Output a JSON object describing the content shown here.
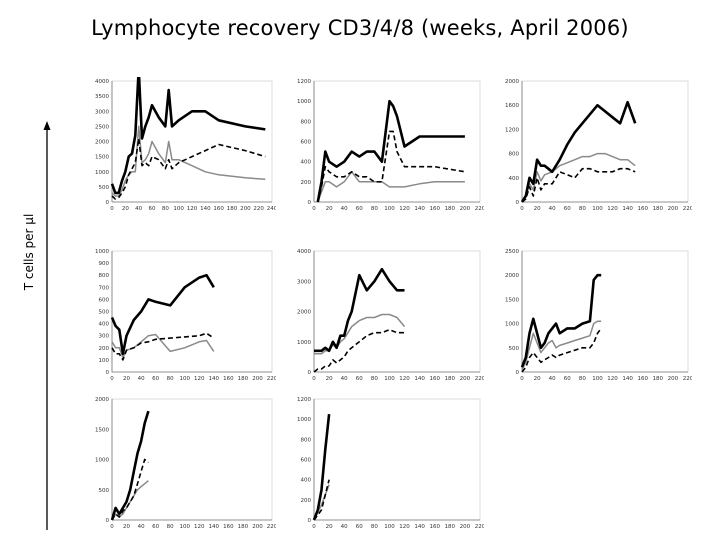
{
  "title": "Lymphocyte recovery CD3/4/8 (weeks, April 2006)",
  "ylabel": "T cells per μl",
  "chart_data": [
    {
      "type": "line",
      "ylim": [
        0,
        4000
      ],
      "yticks": [
        0,
        500,
        1000,
        1500,
        2000,
        2500,
        3000,
        3500,
        4000
      ],
      "xlim": [
        0,
        240
      ],
      "xticks": [
        0,
        20,
        40,
        60,
        80,
        100,
        120,
        140,
        160,
        180,
        200,
        220,
        240
      ],
      "series": [
        {
          "style": "solid",
          "x": [
            0,
            5,
            10,
            15,
            20,
            25,
            30,
            35,
            40,
            45,
            50,
            55,
            60,
            70,
            80,
            85,
            90,
            100,
            120,
            140,
            160,
            200,
            230
          ],
          "y": [
            600,
            300,
            300,
            700,
            1000,
            1500,
            1600,
            2200,
            4400,
            2100,
            2500,
            2800,
            3200,
            2800,
            2500,
            3700,
            2500,
            2700,
            3000,
            3000,
            2700,
            2500,
            2400
          ]
        },
        {
          "style": "dashed",
          "x": [
            0,
            5,
            10,
            15,
            20,
            25,
            30,
            35,
            40,
            45,
            50,
            55,
            60,
            70,
            80,
            85,
            90,
            100,
            120,
            140,
            160,
            200,
            230
          ],
          "y": [
            200,
            100,
            150,
            300,
            500,
            900,
            1100,
            1300,
            2100,
            1200,
            1300,
            1200,
            1500,
            1400,
            1100,
            1400,
            1100,
            1300,
            1500,
            1700,
            1900,
            1700,
            1500
          ]
        },
        {
          "style": "gray",
          "x": [
            0,
            5,
            10,
            15,
            20,
            25,
            30,
            35,
            40,
            45,
            50,
            55,
            60,
            70,
            80,
            85,
            90,
            100,
            120,
            140,
            160,
            200,
            230
          ],
          "y": [
            300,
            200,
            200,
            400,
            700,
            900,
            1000,
            1000,
            2500,
            1300,
            1400,
            1600,
            2000,
            1600,
            1300,
            2000,
            1400,
            1400,
            1200,
            1000,
            900,
            800,
            750
          ]
        }
      ]
    },
    {
      "type": "line",
      "ylim": [
        0,
        1200
      ],
      "yticks": [
        0,
        200,
        400,
        600,
        800,
        1000,
        1200
      ],
      "xlim": [
        0,
        220
      ],
      "xticks": [
        0,
        20,
        40,
        60,
        80,
        100,
        120,
        140,
        160,
        180,
        200,
        220
      ],
      "series": [
        {
          "style": "solid",
          "x": [
            5,
            10,
            15,
            20,
            30,
            40,
            50,
            60,
            70,
            80,
            90,
            100,
            105,
            110,
            120,
            140,
            160,
            200
          ],
          "y": [
            0,
            200,
            500,
            400,
            350,
            400,
            500,
            450,
            500,
            500,
            400,
            1000,
            950,
            850,
            550,
            650,
            650,
            650
          ]
        },
        {
          "style": "dashed",
          "x": [
            5,
            10,
            15,
            20,
            30,
            40,
            50,
            60,
            70,
            80,
            90,
            100,
            105,
            110,
            120,
            140,
            160,
            200
          ],
          "y": [
            0,
            150,
            350,
            300,
            250,
            250,
            300,
            250,
            250,
            200,
            200,
            700,
            700,
            500,
            350,
            350,
            350,
            300
          ]
        },
        {
          "style": "gray",
          "x": [
            5,
            10,
            15,
            20,
            30,
            40,
            50,
            60,
            70,
            80,
            90,
            100,
            105,
            110,
            120,
            140,
            160,
            200
          ],
          "y": [
            0,
            100,
            200,
            200,
            150,
            200,
            300,
            200,
            200,
            200,
            200,
            150,
            150,
            150,
            150,
            180,
            200,
            200
          ]
        }
      ]
    },
    {
      "type": "line",
      "ylim": [
        0,
        2000
      ],
      "yticks": [
        0,
        400,
        800,
        1200,
        1600,
        2000
      ],
      "xlim": [
        0,
        220
      ],
      "xticks": [
        0,
        20,
        40,
        60,
        80,
        100,
        120,
        140,
        160,
        180,
        200,
        220
      ],
      "series": [
        {
          "style": "solid",
          "x": [
            0,
            5,
            10,
            15,
            20,
            25,
            30,
            40,
            50,
            60,
            70,
            80,
            90,
            100,
            110,
            120,
            130,
            140,
            150
          ],
          "y": [
            0,
            100,
            400,
            300,
            700,
            600,
            600,
            500,
            700,
            950,
            1150,
            1300,
            1450,
            1600,
            1500,
            1400,
            1300,
            1650,
            1300
          ]
        },
        {
          "style": "dashed",
          "x": [
            0,
            5,
            10,
            15,
            20,
            25,
            30,
            40,
            50,
            60,
            70,
            80,
            90,
            100,
            110,
            120,
            130,
            140,
            150
          ],
          "y": [
            0,
            50,
            250,
            100,
            400,
            200,
            300,
            300,
            500,
            450,
            400,
            550,
            550,
            500,
            500,
            500,
            550,
            550,
            500
          ]
        },
        {
          "style": "gray",
          "x": [
            0,
            5,
            10,
            15,
            20,
            25,
            30,
            40,
            50,
            60,
            70,
            80,
            90,
            100,
            110,
            120,
            130,
            140,
            150
          ],
          "y": [
            0,
            100,
            300,
            200,
            500,
            350,
            450,
            500,
            600,
            650,
            700,
            750,
            750,
            800,
            800,
            750,
            700,
            700,
            600
          ]
        }
      ]
    },
    {
      "type": "line",
      "ylim": [
        0,
        1000
      ],
      "yticks": [
        0,
        100,
        200,
        300,
        400,
        500,
        600,
        700,
        800,
        900,
        1000
      ],
      "xlim": [
        0,
        220
      ],
      "xticks": [
        0,
        20,
        40,
        60,
        80,
        100,
        120,
        140,
        160,
        180,
        200,
        220
      ],
      "series": [
        {
          "style": "solid",
          "x": [
            0,
            5,
            10,
            15,
            20,
            30,
            40,
            50,
            60,
            80,
            100,
            120,
            130,
            140
          ],
          "y": [
            450,
            380,
            350,
            150,
            300,
            430,
            500,
            600,
            580,
            550,
            700,
            780,
            800,
            700
          ]
        },
        {
          "style": "dashed",
          "x": [
            0,
            5,
            10,
            15,
            20,
            30,
            40,
            50,
            60,
            80,
            100,
            120,
            130,
            140
          ],
          "y": [
            200,
            150,
            150,
            100,
            180,
            200,
            240,
            250,
            270,
            280,
            290,
            300,
            320,
            280
          ]
        },
        {
          "style": "gray",
          "x": [
            0,
            5,
            10,
            15,
            20,
            30,
            40,
            50,
            60,
            80,
            100,
            120,
            130,
            140
          ],
          "y": [
            250,
            200,
            200,
            120,
            180,
            200,
            250,
            300,
            310,
            170,
            200,
            250,
            260,
            170
          ]
        }
      ]
    },
    {
      "type": "line",
      "ylim": [
        0,
        4000
      ],
      "yticks": [
        0,
        1000,
        2000,
        3000,
        4000
      ],
      "xlim": [
        0,
        220
      ],
      "xticks": [
        0,
        20,
        40,
        60,
        80,
        100,
        120,
        140,
        160,
        180,
        200,
        220
      ],
      "series": [
        {
          "style": "solid",
          "x": [
            0,
            5,
            10,
            15,
            20,
            25,
            30,
            35,
            40,
            45,
            50,
            60,
            70,
            80,
            90,
            100,
            110,
            120
          ],
          "y": [
            700,
            700,
            700,
            800,
            700,
            1000,
            800,
            1200,
            1200,
            1700,
            2000,
            3200,
            2700,
            3000,
            3400,
            3000,
            2700,
            2700
          ]
        },
        {
          "style": "dashed",
          "x": [
            0,
            5,
            10,
            15,
            20,
            25,
            30,
            35,
            40,
            45,
            50,
            60,
            70,
            80,
            90,
            100,
            110,
            120
          ],
          "y": [
            0,
            100,
            100,
            200,
            200,
            400,
            300,
            400,
            500,
            700,
            800,
            1000,
            1200,
            1300,
            1300,
            1400,
            1300,
            1300
          ]
        },
        {
          "style": "gray",
          "x": [
            0,
            5,
            10,
            15,
            20,
            25,
            30,
            35,
            40,
            45,
            50,
            60,
            70,
            80,
            90,
            100,
            110,
            120
          ],
          "y": [
            600,
            600,
            600,
            700,
            700,
            900,
            800,
            1000,
            1100,
            1300,
            1500,
            1700,
            1800,
            1800,
            1900,
            1900,
            1800,
            1500
          ]
        }
      ]
    },
    {
      "type": "line",
      "ylim": [
        0,
        2500
      ],
      "yticks": [
        0,
        500,
        1000,
        1500,
        2000,
        2500
      ],
      "xlim": [
        0,
        220
      ],
      "xticks": [
        0,
        20,
        40,
        60,
        80,
        100,
        120,
        140,
        160,
        180,
        200,
        220
      ],
      "series": [
        {
          "style": "solid",
          "x": [
            0,
            5,
            10,
            15,
            20,
            25,
            30,
            35,
            40,
            45,
            50,
            60,
            70,
            80,
            90,
            95,
            100,
            105
          ],
          "y": [
            100,
            300,
            800,
            1100,
            800,
            500,
            600,
            800,
            900,
            1000,
            800,
            900,
            900,
            1000,
            1050,
            1900,
            2000,
            2000
          ]
        },
        {
          "style": "dashed",
          "x": [
            0,
            5,
            10,
            15,
            20,
            25,
            30,
            35,
            40,
            45,
            50,
            60,
            70,
            80,
            90,
            95,
            100,
            105
          ],
          "y": [
            0,
            100,
            300,
            400,
            300,
            200,
            250,
            300,
            350,
            300,
            350,
            400,
            450,
            500,
            500,
            600,
            800,
            900
          ]
        },
        {
          "style": "gray",
          "x": [
            0,
            5,
            10,
            15,
            20,
            25,
            30,
            35,
            40,
            45,
            50,
            60,
            70,
            80,
            90,
            95,
            100,
            105
          ],
          "y": [
            50,
            200,
            500,
            800,
            600,
            400,
            500,
            600,
            650,
            500,
            550,
            600,
            650,
            700,
            750,
            1000,
            1050,
            1050
          ]
        }
      ]
    },
    {
      "type": "line",
      "ylim": [
        0,
        2000
      ],
      "yticks": [
        0,
        500,
        1000,
        1500,
        2000
      ],
      "xlim": [
        0,
        220
      ],
      "xticks": [
        0,
        20,
        40,
        60,
        80,
        100,
        120,
        140,
        160,
        180,
        200,
        220
      ],
      "series": [
        {
          "style": "solid",
          "x": [
            0,
            5,
            10,
            15,
            20,
            25,
            30,
            35,
            40,
            45,
            50
          ],
          "y": [
            0,
            200,
            100,
            200,
            300,
            500,
            800,
            1100,
            1300,
            1600,
            1800
          ]
        },
        {
          "style": "dashed",
          "x": [
            0,
            5,
            10,
            15,
            20,
            25,
            30,
            35,
            40,
            45,
            50
          ],
          "y": [
            0,
            100,
            50,
            150,
            200,
            300,
            400,
            600,
            800,
            1000,
            950
          ]
        },
        {
          "style": "gray",
          "x": [
            0,
            5,
            10,
            15,
            20,
            25,
            30,
            35,
            40,
            45,
            50
          ],
          "y": [
            0,
            100,
            50,
            100,
            200,
            300,
            400,
            500,
            550,
            600,
            650
          ]
        }
      ]
    },
    {
      "type": "line",
      "ylim": [
        0,
        1200
      ],
      "yticks": [
        0,
        200,
        400,
        600,
        800,
        1000,
        1200
      ],
      "xlim": [
        0,
        220
      ],
      "xticks": [
        0,
        20,
        40,
        60,
        80,
        100,
        120,
        140,
        160,
        180,
        200,
        220
      ],
      "series": [
        {
          "style": "solid",
          "x": [
            0,
            5,
            10,
            15,
            20
          ],
          "y": [
            0,
            100,
            300,
            700,
            1050
          ]
        },
        {
          "style": "dashed",
          "x": [
            0,
            5,
            10,
            15,
            20
          ],
          "y": [
            0,
            50,
            100,
            250,
            400
          ]
        },
        {
          "style": "gray",
          "x": [
            0,
            5,
            10,
            15,
            20
          ],
          "y": [
            0,
            80,
            150,
            250,
            350
          ]
        }
      ]
    }
  ]
}
